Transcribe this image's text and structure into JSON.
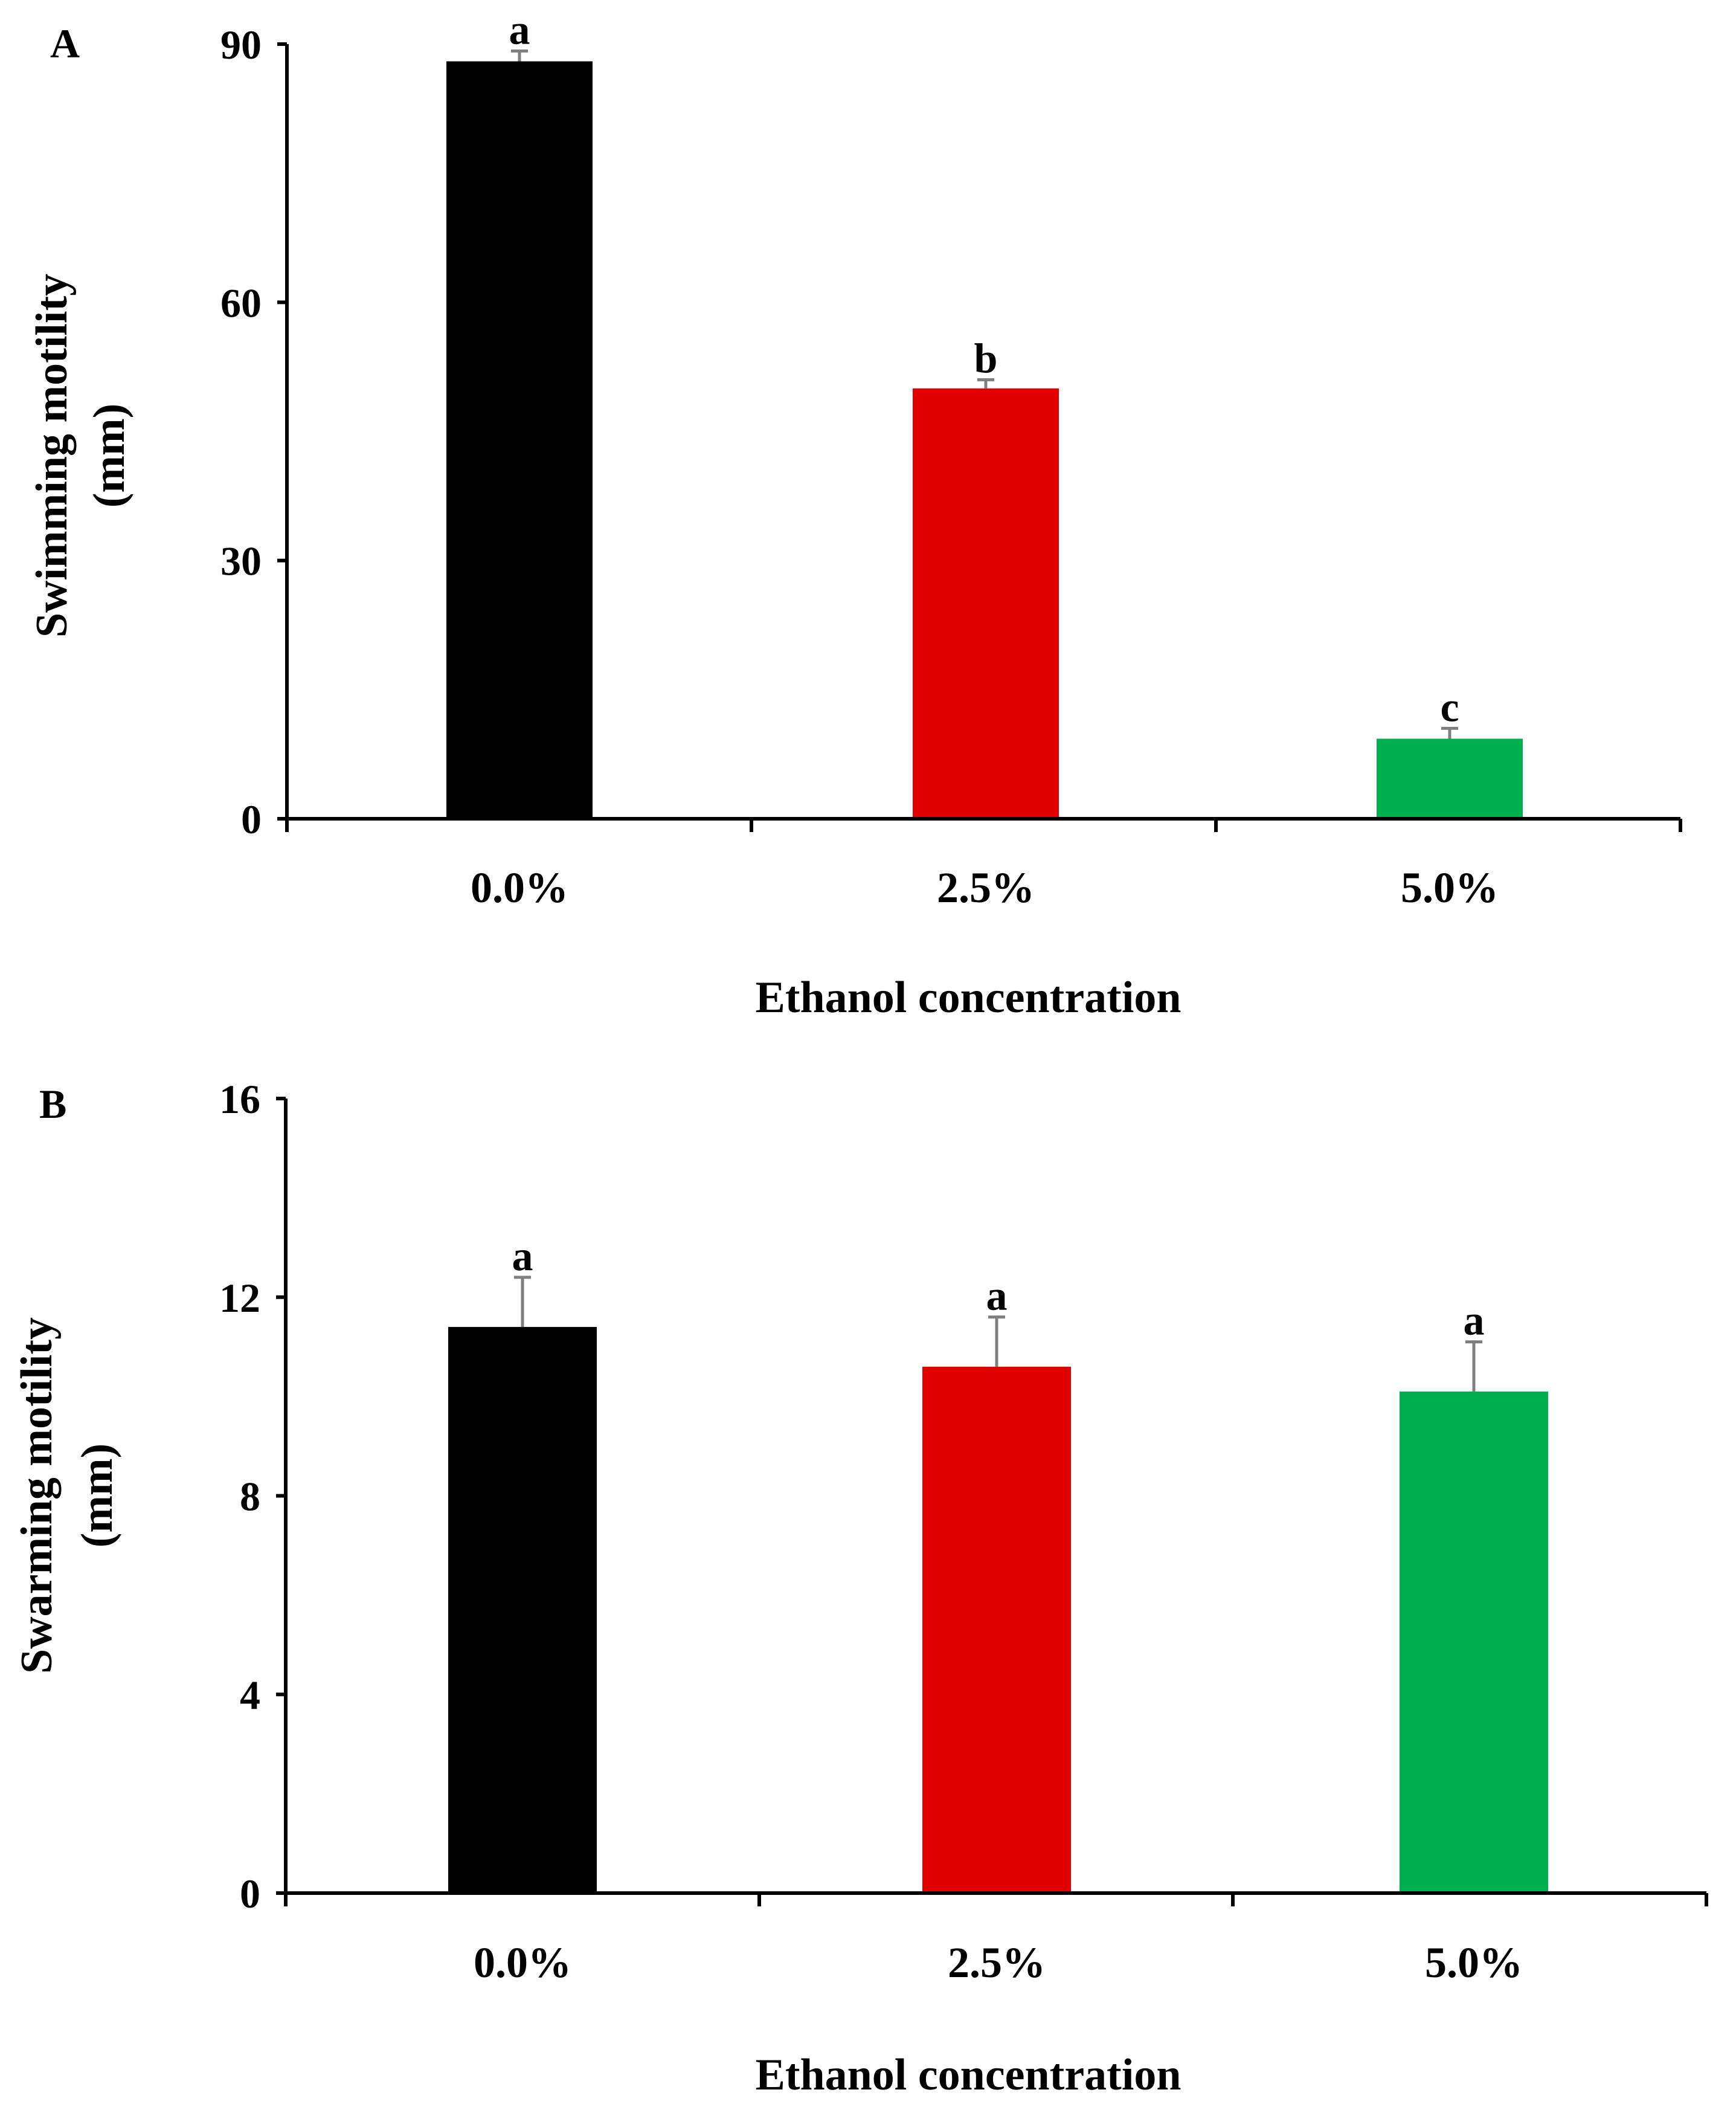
{
  "chart_data": [
    {
      "panel": "A",
      "type": "bar",
      "title": "",
      "xlabel": "Ethanol concentration",
      "ylabel": [
        "Swimming motility",
        "(mm)"
      ],
      "categories": [
        "0.0%",
        "2.5%",
        "5.0%"
      ],
      "values": [
        88,
        50,
        9.3
      ],
      "errors": [
        1.2,
        1.0,
        1.2
      ],
      "significance": [
        "a",
        "b",
        "c"
      ],
      "colors": [
        "#000000",
        "#e00000",
        "#00b050"
      ],
      "ylim": [
        0,
        90
      ],
      "yticks": [
        0,
        30,
        60,
        90
      ],
      "grid": false
    },
    {
      "panel": "B",
      "type": "bar",
      "title": "",
      "xlabel": "Ethanol concentration",
      "ylabel": [
        "Swarming motility",
        "(mm)"
      ],
      "categories": [
        "0.0%",
        "2.5%",
        "5.0%"
      ],
      "values": [
        11.4,
        10.6,
        10.1
      ],
      "errors": [
        1.0,
        1.0,
        1.0
      ],
      "significance": [
        "a",
        "a",
        "a"
      ],
      "colors": [
        "#000000",
        "#e00000",
        "#00b050"
      ],
      "ylim": [
        0,
        16
      ],
      "yticks": [
        0,
        4,
        8,
        12,
        16
      ],
      "grid": false
    }
  ]
}
